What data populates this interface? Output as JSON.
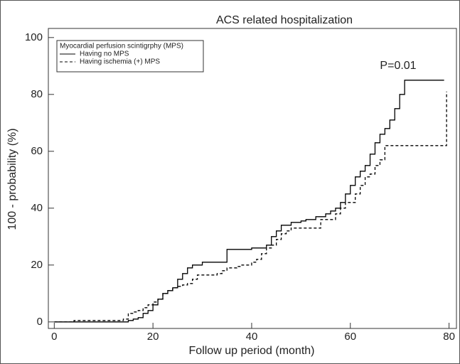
{
  "chart_data": {
    "type": "step",
    "title": "ACS related hospitalization",
    "xlabel": "Follow up period (month)",
    "ylabel": "100 -  probability (%)",
    "annotation": "P=0.01",
    "legend_title": "Myocardial perfusion scintigrphy (MPS)",
    "legend": "upper left",
    "xlim": [
      -1.2,
      81.5
    ],
    "xticks": [
      0,
      20,
      40,
      60,
      80
    ],
    "ylim": [
      -2.3,
      103.2
    ],
    "yticks": [
      0,
      20,
      40,
      60,
      80,
      100
    ],
    "series": [
      {
        "name": "Having no MPS",
        "color": "#000000",
        "dash": "none",
        "x": [
          0,
          14,
          15,
          16,
          17,
          18,
          19,
          20,
          21,
          22,
          23,
          24,
          25,
          26,
          27,
          28,
          30,
          35,
          40,
          43,
          44,
          45,
          46,
          48,
          50,
          51,
          53,
          55,
          56,
          57,
          58,
          59,
          60,
          61,
          62,
          63,
          64,
          65,
          66,
          67,
          68,
          69,
          70,
          71,
          79
        ],
        "values": [
          0,
          0,
          0.5,
          1,
          1.5,
          3,
          4,
          6,
          8,
          10,
          11,
          12,
          15,
          17,
          19,
          20,
          21,
          25.5,
          26,
          27,
          30,
          32,
          34,
          35,
          35.5,
          36,
          37,
          38,
          39,
          40,
          42,
          45,
          48,
          51,
          53,
          55,
          59,
          63,
          66,
          68,
          71,
          75,
          80,
          85,
          85
        ]
      },
      {
        "name": "Having ischemia (+) MPS",
        "color": "#000000",
        "dash": "4 3",
        "x": [
          0,
          4,
          14,
          15,
          16,
          17,
          18,
          19,
          20,
          21,
          22,
          23,
          24,
          25,
          26,
          27,
          28,
          29,
          33,
          34,
          35,
          37,
          38,
          40,
          41,
          42,
          43,
          44,
          45,
          46,
          47,
          48,
          53,
          54,
          56,
          57,
          58,
          59,
          61,
          62,
          63,
          64,
          65,
          66,
          67,
          79,
          79.5
        ],
        "values": [
          0,
          0.5,
          1,
          3,
          3.5,
          4,
          5,
          6,
          7,
          8,
          10,
          11,
          12,
          12.5,
          13,
          13.5,
          15,
          16.5,
          17,
          18,
          19,
          19.5,
          20,
          21,
          22,
          24,
          26,
          27,
          29,
          31,
          32,
          33,
          33,
          36,
          36,
          38,
          40,
          42,
          45,
          48,
          51,
          52,
          55,
          57,
          62,
          62,
          81
        ]
      }
    ]
  }
}
